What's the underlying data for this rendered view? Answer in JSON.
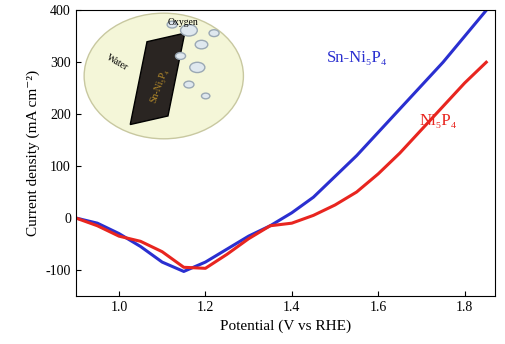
{
  "chart_data": {
    "type": "line",
    "x_label": "Potential (V vs RHE)",
    "y_label": "Current density (mA cm⁻²)",
    "x": [
      0.9,
      0.95,
      1.0,
      1.05,
      1.1,
      1.15,
      1.2,
      1.25,
      1.3,
      1.35,
      1.4,
      1.45,
      1.5,
      1.55,
      1.6,
      1.65,
      1.7,
      1.75,
      1.8,
      1.85
    ],
    "series": [
      {
        "name": "Sn-Ni₅P₄",
        "color": "#2a2fd0",
        "values": [
          0,
          -10,
          -30,
          -55,
          -85,
          -103,
          -85,
          -60,
          -35,
          -15,
          10,
          40,
          80,
          120,
          165,
          210,
          255,
          300,
          350,
          400
        ]
      },
      {
        "name": "Ni₅P₄",
        "color": "#e8251f",
        "values": [
          0,
          -15,
          -35,
          -45,
          -65,
          -95,
          -97,
          -70,
          -40,
          -15,
          -10,
          5,
          25,
          50,
          85,
          125,
          170,
          215,
          260,
          300
        ]
      }
    ],
    "xlim": [
      0.9,
      1.87
    ],
    "xticks": [
      1.0,
      1.2,
      1.4,
      1.6,
      1.8
    ],
    "ylim": [
      -150,
      400
    ],
    "yticks": [
      -100,
      0,
      100,
      200,
      300,
      400
    ],
    "grid": false,
    "annotations": [
      "Water",
      "Oxygen",
      "Sn-Ni₅P₄"
    ]
  }
}
